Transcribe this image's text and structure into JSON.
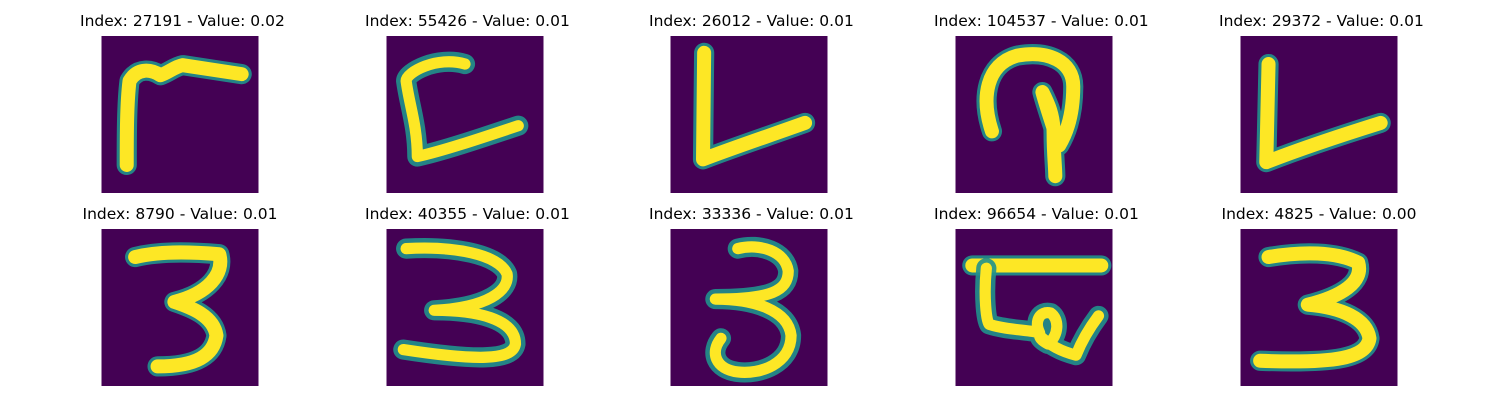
{
  "colors": {
    "background": "#ffffff",
    "image_background": "#440154",
    "stroke_core": "#fde725",
    "stroke_edge": "#21918c",
    "title_text": "#000000"
  },
  "grid": {
    "rows": 2,
    "columns": 5,
    "colormap": "viridis"
  },
  "panels": [
    {
      "title": "Index: 27191 - Value: 0.02",
      "index": 27191,
      "value": 0.02,
      "glyph": "corner-stroke"
    },
    {
      "title": "Index: 55426 - Value: 0.01",
      "index": 55426,
      "value": 0.01,
      "glyph": "bracket-stroke"
    },
    {
      "title": "Index: 26012 - Value: 0.01",
      "index": 26012,
      "value": 0.01,
      "glyph": "v-stroke"
    },
    {
      "title": "Index: 104537 - Value: 0.01",
      "index": 104537,
      "value": 0.01,
      "glyph": "loop-stroke"
    },
    {
      "title": "Index: 29372 - Value: 0.01",
      "index": 29372,
      "value": 0.01,
      "glyph": "v-stroke"
    },
    {
      "title": "Index: 8790 - Value: 0.01",
      "index": 8790,
      "value": 0.01,
      "glyph": "three"
    },
    {
      "title": "Index: 40355 - Value: 0.01",
      "index": 40355,
      "value": 0.01,
      "glyph": "three"
    },
    {
      "title": "Index: 33336 - Value: 0.01",
      "index": 33336,
      "value": 0.01,
      "glyph": "three"
    },
    {
      "title": "Index: 96654 - Value: 0.01",
      "index": 96654,
      "value": 0.01,
      "glyph": "flag-stroke"
    },
    {
      "title": "Index: 4825 - Value: 0.00",
      "index": 4825,
      "value": 0.0,
      "glyph": "three"
    }
  ]
}
